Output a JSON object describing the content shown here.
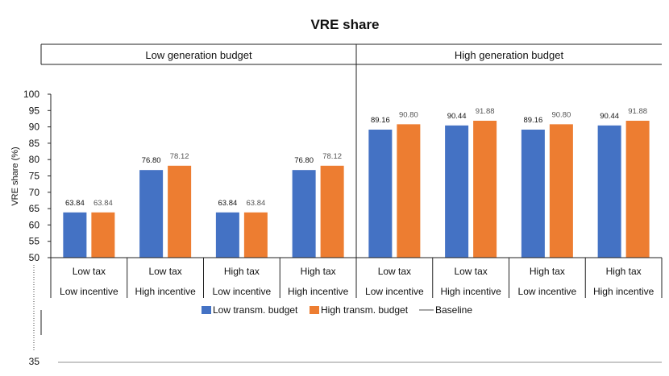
{
  "chart_data": {
    "type": "bar",
    "title": "VRE share",
    "ylabel": "VRE share (%)",
    "xlabel": "",
    "ylim": [
      50,
      100
    ],
    "yticks": [
      50,
      55,
      60,
      65,
      70,
      75,
      80,
      85,
      90,
      95,
      100
    ],
    "extra_tick": "35",
    "grid": false,
    "panels": [
      "Low generation budget",
      "High generation budget"
    ],
    "categories": [
      {
        "tax": "Low tax",
        "incentive": "Low incentive"
      },
      {
        "tax": "Low tax",
        "incentive": "High incentive"
      },
      {
        "tax": "High tax",
        "incentive": "Low incentive"
      },
      {
        "tax": "High tax",
        "incentive": "High incentive"
      },
      {
        "tax": "Low tax",
        "incentive": "Low incentive"
      },
      {
        "tax": "Low tax",
        "incentive": "High incentive"
      },
      {
        "tax": "High tax",
        "incentive": "Low incentive"
      },
      {
        "tax": "High tax",
        "incentive": "High incentive"
      }
    ],
    "series": [
      {
        "name": "Low transm. budget",
        "color": "#4472C4",
        "values": [
          63.84,
          76.8,
          63.84,
          76.8,
          89.16,
          90.44,
          89.16,
          90.44
        ],
        "labels": [
          "63.84",
          "76.80",
          "63.84",
          "76.80",
          "89.16",
          "90.44",
          "89.16",
          "90.44"
        ]
      },
      {
        "name": "High transm. budget",
        "color": "#ED7D31",
        "values": [
          63.84,
          78.12,
          63.84,
          78.12,
          90.8,
          91.88,
          90.8,
          91.88
        ],
        "labels": [
          "63.84",
          "78.12",
          "63.84",
          "78.12",
          "90.80",
          "91.88",
          "90.80",
          "91.88"
        ]
      }
    ],
    "baseline": {
      "name": "Baseline",
      "color": "#A6A6A6"
    },
    "legend_position": "bottom-center"
  }
}
